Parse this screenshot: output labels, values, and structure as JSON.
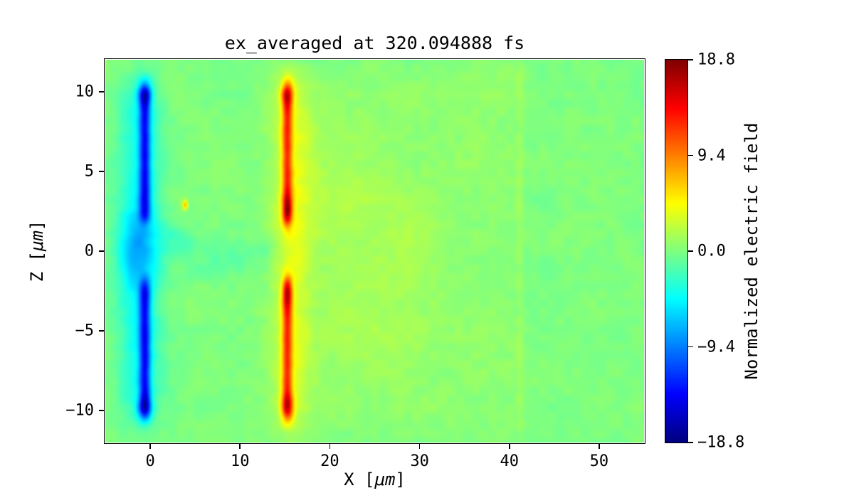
{
  "chart_data": {
    "type": "heatmap",
    "title": "ex_averaged at 320.094888 fs",
    "xlabel": "X [μm]",
    "ylabel": "Z [μm]",
    "xlabel_parts": {
      "prefix": "X [",
      "unit": "μm",
      "suffix": "]"
    },
    "ylabel_parts": {
      "prefix": "Z [",
      "unit": "μm",
      "suffix": "]"
    },
    "xlim": [
      -5,
      55
    ],
    "ylim": [
      -12,
      12
    ],
    "xtick_values": [
      0,
      10,
      20,
      30,
      40,
      50
    ],
    "xtick_labels": [
      "0",
      "10",
      "20",
      "30",
      "40",
      "50"
    ],
    "ytick_values": [
      10,
      5,
      0,
      -5,
      -10
    ],
    "ytick_labels": [
      "10",
      "5",
      "0",
      "−5",
      "−10"
    ],
    "grid": false,
    "colorbar": {
      "label": "Normalized electric field",
      "vmin": -18.8,
      "vmax": 18.8,
      "tick_values": [
        18.8,
        9.4,
        0.0,
        -9.4,
        -18.8
      ],
      "tick_labels": [
        "18.8",
        "9.4",
        "0.0",
        "−9.4",
        "−18.8"
      ],
      "colormap": "jet",
      "position": "right"
    },
    "background_value": 0,
    "noise": {
      "amplitude": 0.45,
      "cells_x": 64,
      "cells_z": 44,
      "seed": 42
    },
    "features": [
      {
        "kind": "stripe_v",
        "x": -0.6,
        "sx": 0.45,
        "z0": 1.9,
        "z1": 10.1,
        "amp": -10.5,
        "soft": 0.5
      },
      {
        "kind": "stripe_v",
        "x": -0.6,
        "sx": 0.45,
        "z0": -10.1,
        "z1": -1.9,
        "amp": -10.5,
        "soft": 0.5
      },
      {
        "kind": "stripe_v",
        "x": -1.2,
        "sx": 1.7,
        "z0": -10.5,
        "z1": 10.5,
        "amp": -4.2,
        "soft": 1.2
      },
      {
        "kind": "blob",
        "x": -1.4,
        "z": 0,
        "sx": 2.2,
        "sz": 2.4,
        "amp": -4.0
      },
      {
        "kind": "blob",
        "x": -0.6,
        "z": 10,
        "sx": 0.8,
        "sz": 0.8,
        "amp": -7.0
      },
      {
        "kind": "blob",
        "x": -0.6,
        "z": -10,
        "sx": 0.8,
        "sz": 0.8,
        "amp": -7.0
      },
      {
        "kind": "stripe_v",
        "x": 15.25,
        "sx": 0.4,
        "z0": 1.8,
        "z1": 10.1,
        "amp": 9.5,
        "soft": 0.5
      },
      {
        "kind": "stripe_v",
        "x": 15.25,
        "sx": 0.4,
        "z0": -10.1,
        "z1": -1.8,
        "amp": 9.5,
        "soft": 0.5
      },
      {
        "kind": "stripe_v",
        "x": 15.7,
        "sx": 1.5,
        "z0": -10.6,
        "z1": 10.6,
        "amp": 3.2,
        "soft": 1.4
      },
      {
        "kind": "blob",
        "x": 15.3,
        "z": 10,
        "sx": 0.7,
        "sz": 0.9,
        "amp": 7.5
      },
      {
        "kind": "blob",
        "x": 15.3,
        "z": -10,
        "sx": 0.7,
        "sz": 0.9,
        "amp": 7.5
      },
      {
        "kind": "blob",
        "x": 15.3,
        "z": 2.5,
        "sx": 0.5,
        "sz": 1.0,
        "amp": 6.0
      },
      {
        "kind": "blob",
        "x": 15.3,
        "z": -2.6,
        "sx": 0.5,
        "sz": 1.0,
        "amp": 5.0
      },
      {
        "kind": "box",
        "x0": 15.5,
        "x1": 41.0,
        "z0": -11.5,
        "z1": 11.5,
        "amp": 0.55,
        "soft": 1.0
      },
      {
        "kind": "blob",
        "x": 21,
        "z": 3,
        "sx": 5,
        "sz": 4,
        "amp": 1.1
      },
      {
        "kind": "blob",
        "x": 25,
        "z": -4,
        "sx": 6,
        "sz": 4,
        "amp": 0.9
      },
      {
        "kind": "blob",
        "x": 29,
        "z": 1.5,
        "sx": 4,
        "sz": 3.5,
        "amp": 0.8
      },
      {
        "kind": "stripe_v",
        "x": 41.2,
        "sx": 0.3,
        "z0": -11.8,
        "z1": 11.8,
        "amp": 0.8,
        "soft": 0.5
      },
      {
        "kind": "blob",
        "x": 4,
        "z": 0.4,
        "sx": 2.5,
        "sz": 0.8,
        "amp": -1.3
      },
      {
        "kind": "blob",
        "x": 9,
        "z": -0.4,
        "sx": 3.0,
        "sz": 0.9,
        "amp": -1.1
      },
      {
        "kind": "blob",
        "x": 13,
        "z": 0.2,
        "sx": 2.0,
        "sz": 0.7,
        "amp": -1.0
      },
      {
        "kind": "blob",
        "x": 6.5,
        "z": -1.3,
        "sx": 2.2,
        "sz": 0.8,
        "amp": -0.9
      },
      {
        "kind": "blob",
        "x": 2.2,
        "z": 1.1,
        "sx": 1.6,
        "sz": 0.9,
        "amp": -1.1
      },
      {
        "kind": "blob",
        "x": 3.9,
        "z": 2.9,
        "sx": 0.3,
        "sz": 0.3,
        "amp": 7.0
      }
    ]
  }
}
